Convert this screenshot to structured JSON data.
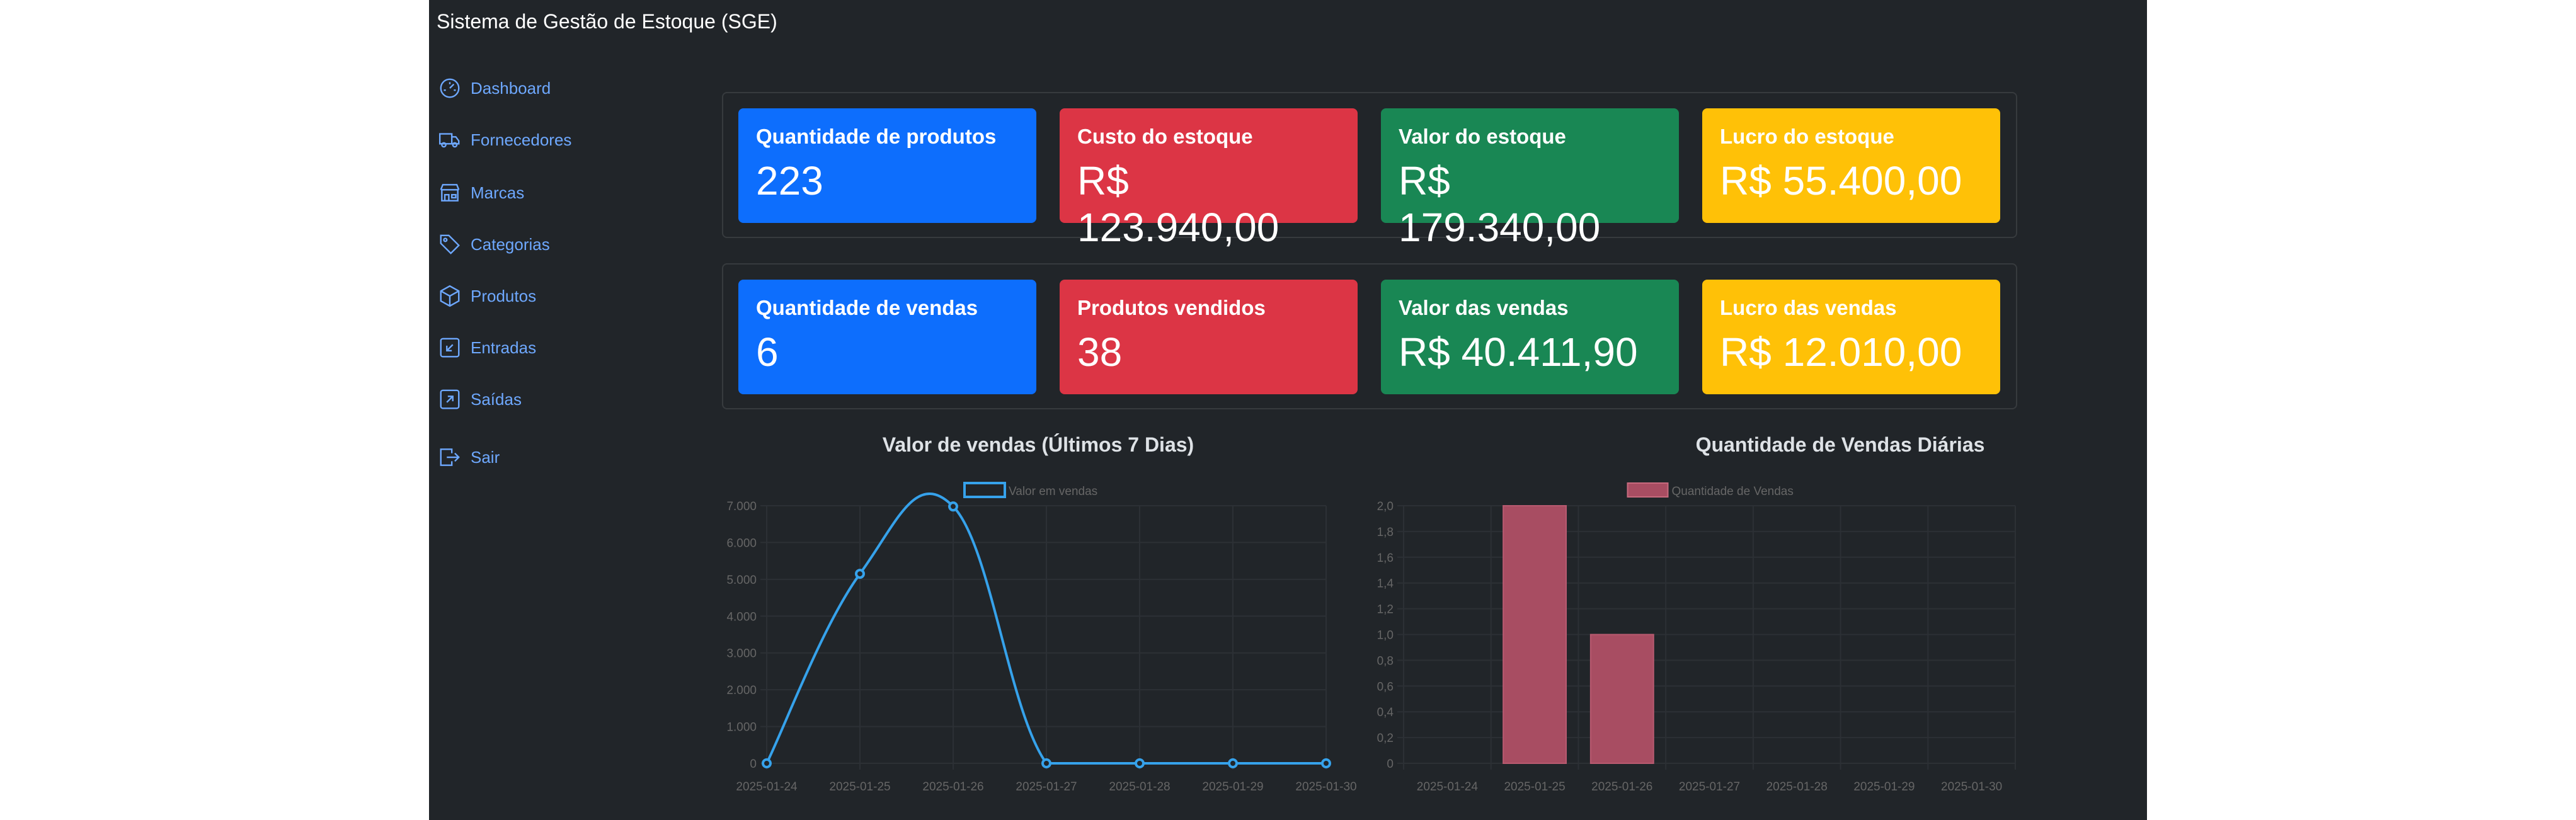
{
  "app": {
    "title": "Sistema de Gestão de Estoque (SGE)"
  },
  "sidebar": {
    "items": [
      {
        "label": "Dashboard",
        "icon": "speedometer-icon"
      },
      {
        "label": "Fornecedores",
        "icon": "truck-icon"
      },
      {
        "label": "Marcas",
        "icon": "shop-icon"
      },
      {
        "label": "Categorias",
        "icon": "tags-icon"
      },
      {
        "label": "Produtos",
        "icon": "box-icon"
      },
      {
        "label": "Entradas",
        "icon": "arrow-down-left-square-icon"
      },
      {
        "label": "Saídas",
        "icon": "arrow-up-right-square-icon"
      },
      {
        "label": "Sair",
        "icon": "box-arrow-right-icon"
      }
    ]
  },
  "stock_cards": [
    {
      "title": "Quantidade de produtos",
      "value": "223",
      "color": "#0d6efd"
    },
    {
      "title": "Custo do estoque",
      "value": "R$ 123.940,00",
      "color": "#dc3545"
    },
    {
      "title": "Valor do estoque",
      "value": "R$ 179.340,00",
      "color": "#198754"
    },
    {
      "title": "Lucro do estoque",
      "value": "R$ 55.400,00",
      "color": "#ffc107"
    }
  ],
  "sales_cards": [
    {
      "title": "Quantidade de vendas",
      "value": "6",
      "color": "#0d6efd"
    },
    {
      "title": "Produtos vendidos",
      "value": "38",
      "color": "#dc3545"
    },
    {
      "title": "Valor das vendas",
      "value": "R$ 40.411,90",
      "color": "#198754"
    },
    {
      "title": "Lucro das vendas",
      "value": "R$ 12.010,00",
      "color": "#ffc107"
    }
  ],
  "chart_titles": [
    "Valor de vendas (Últimos 7 Dias)",
    "Quantidade de Vendas Diárias"
  ],
  "chart_data": [
    {
      "type": "line",
      "title": "Valor de vendas (Últimos 7 Dias)",
      "categories": [
        "2025-01-24",
        "2025-01-25",
        "2025-01-26",
        "2025-01-27",
        "2025-01-28",
        "2025-01-29",
        "2025-01-30"
      ],
      "series": [
        {
          "name": "Valor em vendas",
          "values": [
            0,
            5150,
            6980,
            0,
            0,
            0,
            0
          ],
          "color": "#36a2eb"
        }
      ],
      "ylim": [
        0,
        7000
      ],
      "yticks": [
        "0",
        "1.000",
        "2.000",
        "3.000",
        "4.000",
        "5.000",
        "6.000",
        "7.000"
      ],
      "legend": "top",
      "grid": true,
      "smooth": true
    },
    {
      "type": "bar",
      "title": "Quantidade de Vendas Diárias",
      "categories": [
        "2025-01-24",
        "2025-01-25",
        "2025-01-26",
        "2025-01-27",
        "2025-01-28",
        "2025-01-29",
        "2025-01-30"
      ],
      "series": [
        {
          "name": "Quantidade de Vendas",
          "values": [
            0,
            2,
            1,
            0,
            0,
            0,
            0
          ],
          "color": "#a84d62"
        }
      ],
      "ylim": [
        0,
        2
      ],
      "yticks": [
        "0",
        "0,2",
        "0,4",
        "0,6",
        "0,8",
        "1,0",
        "1,2",
        "1,4",
        "1,6",
        "1,8",
        "2,0"
      ],
      "legend": "top",
      "grid": true
    }
  ]
}
